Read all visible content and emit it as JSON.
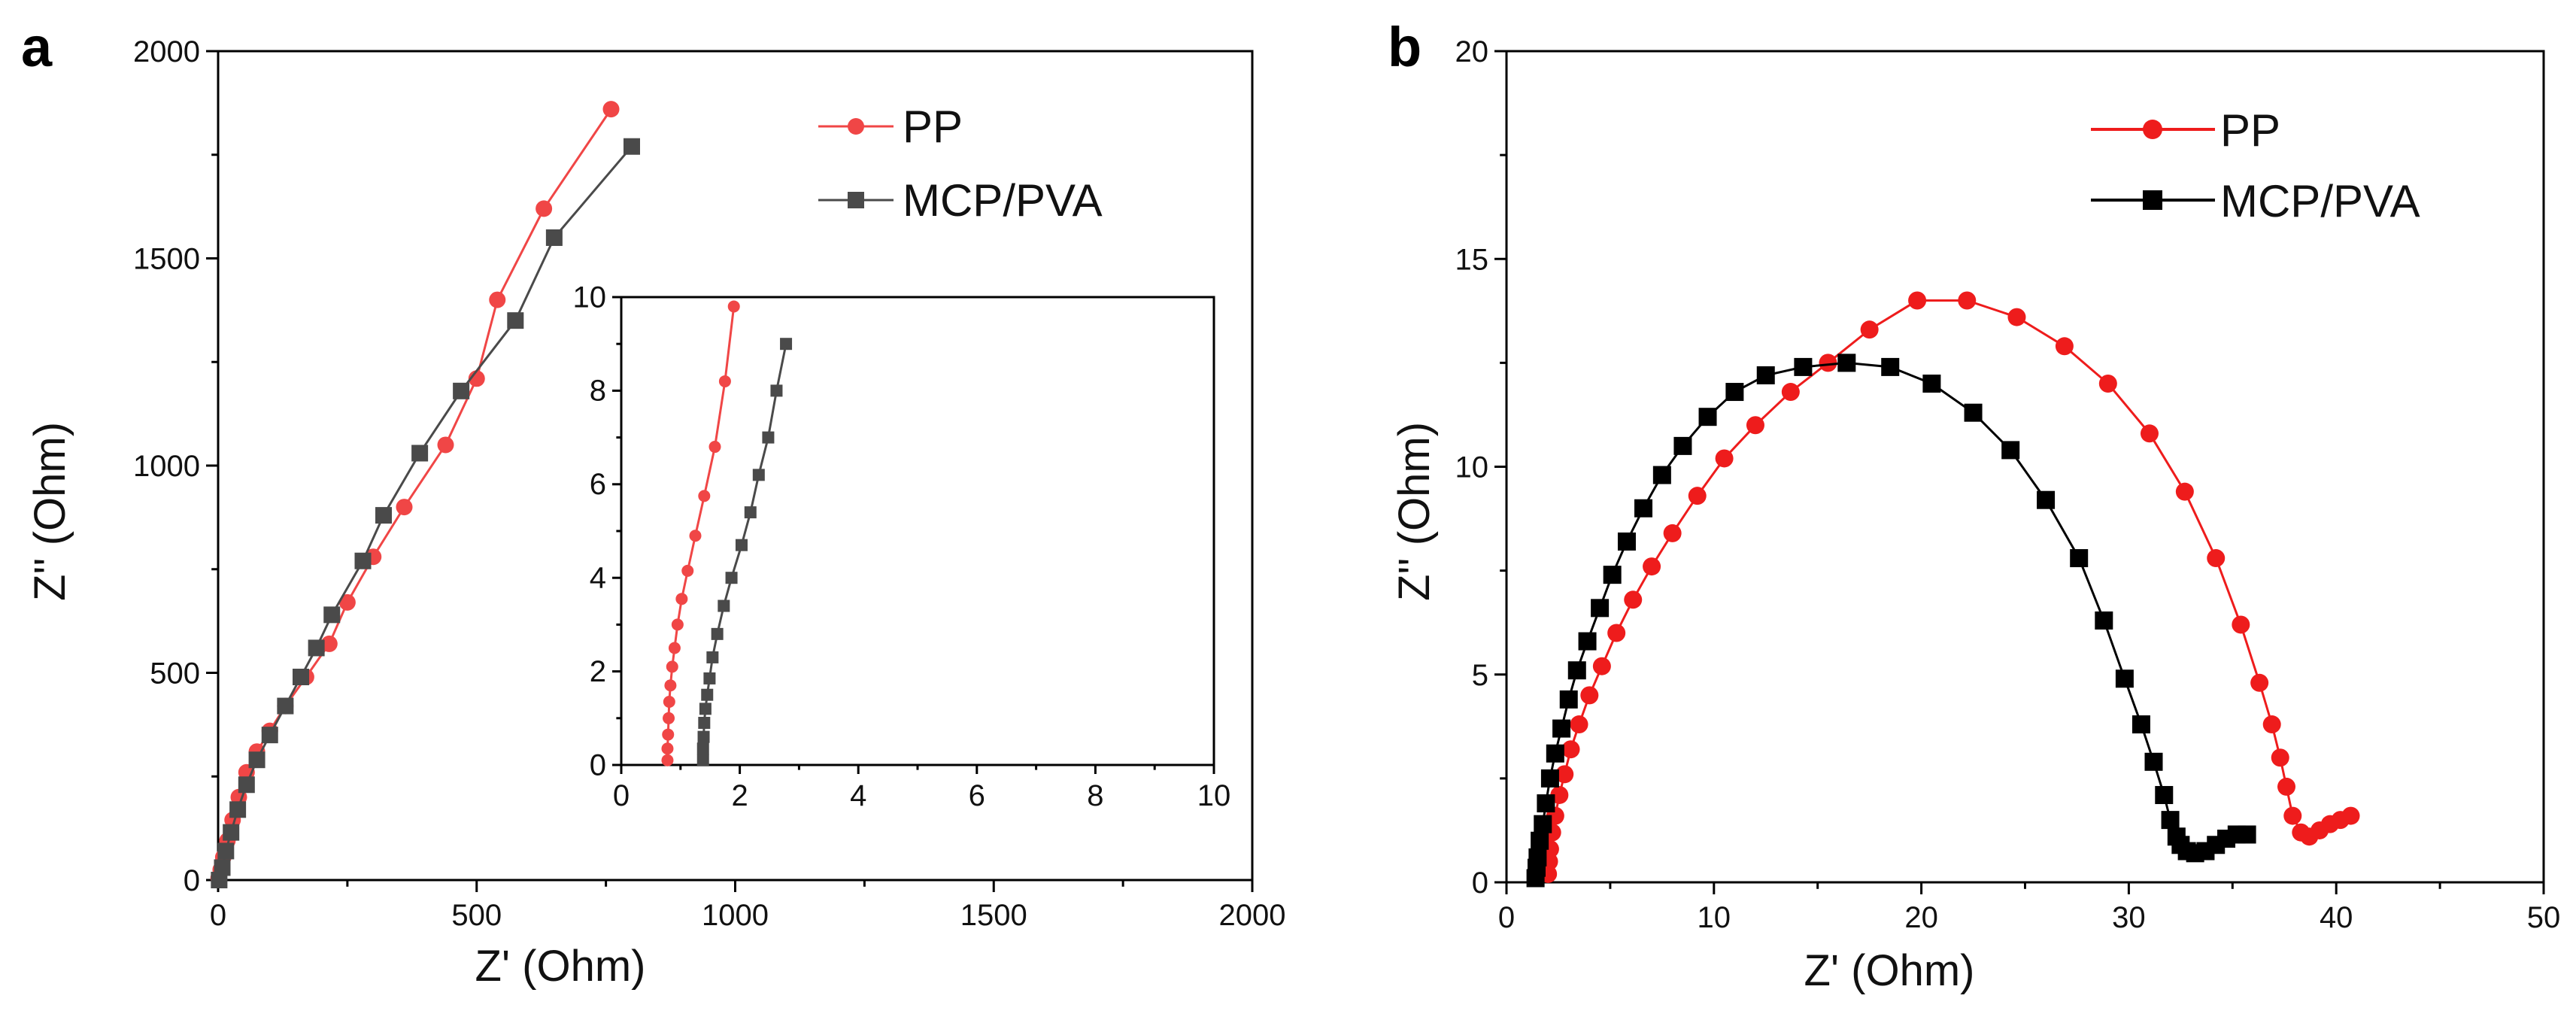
{
  "chart_data": [
    {
      "panel": "a",
      "type": "scatter",
      "xlabel": "Z' (Ohm)",
      "ylabel": "Z'' (Ohm)",
      "xlim": [
        0,
        2000
      ],
      "ylim": [
        0,
        2000
      ],
      "xticks": [
        0,
        500,
        1000,
        1500,
        2000
      ],
      "yticks": [
        0,
        500,
        1000,
        1500,
        2000
      ],
      "legend": {
        "position": "top-right",
        "entries": [
          "PP",
          "MCP/PVA"
        ]
      },
      "series": [
        {
          "name": "PP",
          "color": "#f04646",
          "marker": "circle",
          "x": [
            1,
            5,
            10,
            18,
            28,
            40,
            55,
            75,
            100,
            130,
            170,
            215,
            250,
            300,
            360,
            440,
            500,
            540,
            630,
            760
          ],
          "y": [
            5,
            25,
            55,
            95,
            145,
            200,
            260,
            310,
            360,
            420,
            490,
            570,
            670,
            780,
            900,
            1050,
            1210,
            1400,
            1620,
            1860
          ]
        },
        {
          "name": "MCP/PVA",
          "color": "#4a4a4a",
          "marker": "square",
          "x": [
            2,
            8,
            15,
            25,
            38,
            55,
            75,
            100,
            130,
            160,
            190,
            220,
            280,
            320,
            390,
            470,
            575,
            650,
            800
          ],
          "y": [
            0,
            30,
            70,
            115,
            170,
            230,
            290,
            350,
            420,
            490,
            560,
            640,
            770,
            880,
            1030,
            1180,
            1350,
            1550,
            1770
          ]
        }
      ],
      "inset": {
        "xlim": [
          0,
          10
        ],
        "ylim": [
          0,
          10
        ],
        "xticks": [
          0,
          2,
          4,
          6,
          8,
          10
        ],
        "yticks": [
          0,
          2,
          4,
          6,
          8,
          10
        ],
        "series": [
          {
            "name": "PP",
            "color": "#f04646",
            "marker": "circle",
            "x": [
              0.78,
              0.78,
              0.79,
              0.8,
              0.81,
              0.83,
              0.86,
              0.9,
              0.95,
              1.02,
              1.12,
              1.25,
              1.4,
              1.58,
              1.75,
              1.9
            ],
            "y": [
              0.1,
              0.35,
              0.65,
              1.0,
              1.35,
              1.7,
              2.1,
              2.5,
              3.0,
              3.55,
              4.15,
              4.9,
              5.75,
              6.8,
              8.2,
              9.8
            ]
          },
          {
            "name": "MCP/PVA",
            "color": "#4a4a4a",
            "marker": "square",
            "x": [
              1.38,
              1.38,
              1.39,
              1.4,
              1.42,
              1.45,
              1.49,
              1.54,
              1.62,
              1.73,
              1.86,
              2.03,
              2.18,
              2.32,
              2.48,
              2.62,
              2.78
            ],
            "y": [
              0.1,
              0.35,
              0.6,
              0.9,
              1.2,
              1.5,
              1.85,
              2.3,
              2.8,
              3.4,
              4.0,
              4.7,
              5.4,
              6.2,
              7.0,
              8.0,
              9.0
            ]
          }
        ]
      }
    },
    {
      "panel": "b",
      "type": "scatter",
      "xlabel": "Z' (Ohm)",
      "ylabel": "Z'' (Ohm)",
      "xlim": [
        0,
        50
      ],
      "ylim": [
        0,
        20
      ],
      "xticks": [
        0,
        10,
        20,
        30,
        40,
        50
      ],
      "yticks": [
        0,
        5,
        10,
        15,
        20
      ],
      "legend": {
        "position": "top-right",
        "entries": [
          "PP",
          "MCP/PVA"
        ]
      },
      "series": [
        {
          "name": "PP",
          "color": "#ee1c1c",
          "marker": "circle",
          "x": [
            2.0,
            2.05,
            2.1,
            2.2,
            2.35,
            2.55,
            2.8,
            3.1,
            3.5,
            4.0,
            4.6,
            5.3,
            6.1,
            7.0,
            8.0,
            9.2,
            10.5,
            12.0,
            13.7,
            15.5,
            17.5,
            19.8,
            22.2,
            24.6,
            26.9,
            29.0,
            31.0,
            32.7,
            34.2,
            35.4,
            36.3,
            36.9,
            37.3,
            37.6,
            37.9,
            38.3,
            38.7,
            39.2,
            39.7,
            40.2,
            40.7
          ],
          "y": [
            0.2,
            0.5,
            0.8,
            1.2,
            1.6,
            2.1,
            2.6,
            3.2,
            3.8,
            4.5,
            5.2,
            6.0,
            6.8,
            7.6,
            8.4,
            9.3,
            10.2,
            11.0,
            11.8,
            12.5,
            13.3,
            14.0,
            14.0,
            13.6,
            12.9,
            12.0,
            10.8,
            9.4,
            7.8,
            6.2,
            4.8,
            3.8,
            3.0,
            2.3,
            1.6,
            1.2,
            1.1,
            1.25,
            1.4,
            1.5,
            1.6
          ],
          "line": true
        },
        {
          "name": "MCP/PVA",
          "color": "#000000",
          "marker": "square",
          "x": [
            1.4,
            1.45,
            1.5,
            1.6,
            1.75,
            1.9,
            2.1,
            2.35,
            2.65,
            3.0,
            3.4,
            3.9,
            4.5,
            5.1,
            5.8,
            6.6,
            7.5,
            8.5,
            9.7,
            11.0,
            12.5,
            14.3,
            16.4,
            18.5,
            20.5,
            22.5,
            24.3,
            26.0,
            27.6,
            28.8,
            29.8,
            30.6,
            31.2,
            31.7,
            32.0,
            32.3,
            32.5,
            32.8,
            33.2,
            33.7,
            34.2,
            34.7,
            35.2,
            35.7
          ],
          "y": [
            0.1,
            0.35,
            0.6,
            1.0,
            1.4,
            1.9,
            2.5,
            3.1,
            3.7,
            4.4,
            5.1,
            5.8,
            6.6,
            7.4,
            8.2,
            9.0,
            9.8,
            10.5,
            11.2,
            11.8,
            12.2,
            12.4,
            12.5,
            12.4,
            12.0,
            11.3,
            10.4,
            9.2,
            7.8,
            6.3,
            4.9,
            3.8,
            2.9,
            2.1,
            1.5,
            1.1,
            0.9,
            0.75,
            0.7,
            0.75,
            0.9,
            1.05,
            1.15,
            1.15
          ],
          "line": true
        }
      ]
    }
  ],
  "panels": {
    "a": {
      "label": "a"
    },
    "b": {
      "label": "b"
    }
  }
}
